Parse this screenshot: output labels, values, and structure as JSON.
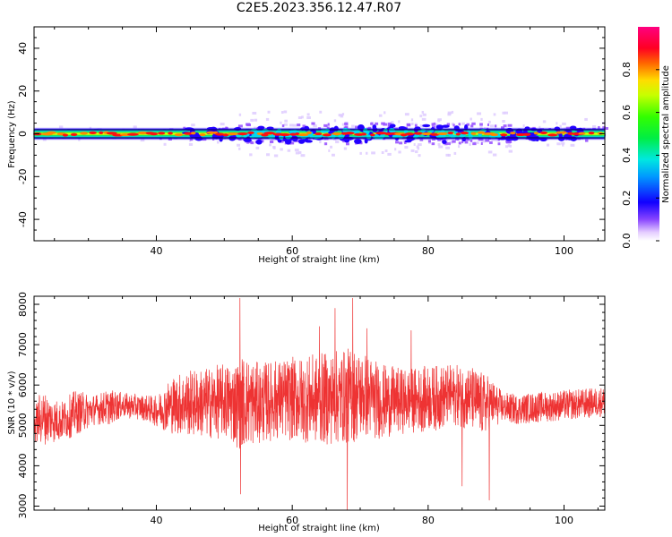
{
  "figure": {
    "title": "C2E5.2023.356.12.47.R07"
  },
  "chart_data": [
    {
      "type": "heatmap",
      "title": "C2E5.2023.356.12.47.R07",
      "xlabel": "Height of straight line (km)",
      "ylabel": "Frequency (Hz)",
      "xlim": [
        22,
        106
      ],
      "ylim": [
        -50,
        50
      ],
      "xticks": [
        40,
        60,
        80,
        100
      ],
      "yticks": [
        -40,
        -20,
        0,
        20,
        40
      ],
      "colorbar": {
        "label": "Normalized spectral amplitude",
        "range": [
          0.0,
          1.0
        ],
        "ticks": [
          "0.0",
          "0.2",
          "0.4",
          "0.6",
          "0.8"
        ]
      },
      "band": {
        "center_hz": 0,
        "half_width_hz": 2,
        "peak_values": [
          0.85,
          0.9,
          0.95
        ]
      }
    },
    {
      "type": "line",
      "xlabel": "Height of straight line (km)",
      "ylabel": "SNR (10 * v/v)",
      "xlim": [
        22,
        106
      ],
      "ylim": [
        2900,
        8200
      ],
      "xticks": [
        40,
        60,
        80,
        100
      ],
      "yticks": [
        3000,
        4000,
        5000,
        6000,
        7000,
        8000
      ],
      "series": [
        {
          "color": "#ee3333",
          "envelope": {
            "x": [
              22,
              23,
              26,
              28,
              31,
              33,
              35,
              38,
              40,
              42,
              44,
              47,
              50,
              52,
              53,
              55,
              58,
              61,
              64,
              67,
              69,
              71,
              73,
              76,
              79,
              82,
              84,
              86,
              88,
              89,
              91,
              93,
              96,
              100,
              104,
              106
            ],
            "mean": [
              5000,
              5200,
              5100,
              5300,
              5400,
              5450,
              5500,
              5450,
              5350,
              5500,
              5550,
              5550,
              5600,
              5550,
              5600,
              5550,
              5650,
              5650,
              5650,
              5700,
              5750,
              5750,
              5600,
              5600,
              5650,
              5700,
              5750,
              5700,
              5500,
              5550,
              5450,
              5400,
              5450,
              5500,
              5550,
              5600
            ],
            "amp": [
              350,
              550,
              400,
              450,
              300,
              350,
              250,
              250,
              300,
              550,
              650,
              700,
              750,
              900,
              950,
              800,
              800,
              850,
              900,
              950,
              950,
              850,
              750,
              650,
              650,
              650,
              600,
              650,
              650,
              550,
              300,
              300,
              300,
              300,
              300,
              300
            ]
          },
          "spikes": [
            {
              "x": 52.3,
              "y": 8150
            },
            {
              "x": 52.4,
              "y": 3300
            },
            {
              "x": 66.3,
              "y": 7900
            },
            {
              "x": 68.1,
              "y": 2900
            },
            {
              "x": 68.9,
              "y": 8150
            },
            {
              "x": 64.0,
              "y": 7450
            },
            {
              "x": 71.0,
              "y": 7400
            },
            {
              "x": 85.0,
              "y": 3500
            },
            {
              "x": 89.0,
              "y": 3150
            },
            {
              "x": 77.5,
              "y": 7350
            }
          ]
        }
      ]
    }
  ]
}
